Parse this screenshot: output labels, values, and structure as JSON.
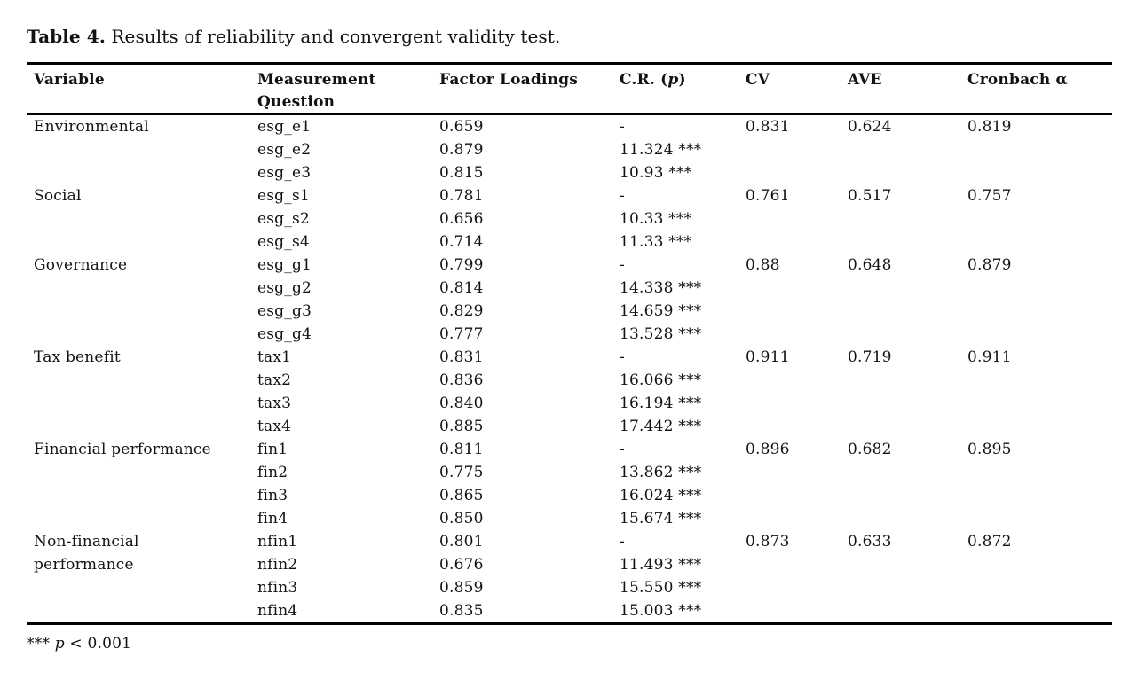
{
  "caption": {
    "label": "Table 4.",
    "text": " Results of reliability and convergent validity test."
  },
  "table": {
    "headers": {
      "variable": "Variable",
      "measurement_question": "Measurement Question",
      "factor_loadings": "Factor Loadings",
      "cr_prefix": "C.R. (",
      "cr_p": "p",
      "cr_suffix": ")",
      "cv": "CV",
      "ave": "AVE",
      "cronbach": "Cronbach α"
    },
    "groups": [
      {
        "variable": "Environmental",
        "cv": "0.831",
        "ave": "0.624",
        "cronbach": "0.819",
        "items": [
          {
            "question": "esg_e1",
            "loading": "0.659",
            "cr": "-"
          },
          {
            "question": "esg_e2",
            "loading": "0.879",
            "cr": "11.324 ***"
          },
          {
            "question": "esg_e3",
            "loading": "0.815",
            "cr": "10.93 ***"
          }
        ]
      },
      {
        "variable": "Social",
        "cv": "0.761",
        "ave": "0.517",
        "cronbach": "0.757",
        "items": [
          {
            "question": "esg_s1",
            "loading": "0.781",
            "cr": "-"
          },
          {
            "question": "esg_s2",
            "loading": "0.656",
            "cr": "10.33 ***"
          },
          {
            "question": "esg_s4",
            "loading": "0.714",
            "cr": "11.33 ***"
          }
        ]
      },
      {
        "variable": "Governance",
        "cv": "0.88",
        "ave": "0.648",
        "cronbach": "0.879",
        "items": [
          {
            "question": "esg_g1",
            "loading": "0.799",
            "cr": "-"
          },
          {
            "question": "esg_g2",
            "loading": "0.814",
            "cr": "14.338 ***"
          },
          {
            "question": "esg_g3",
            "loading": "0.829",
            "cr": "14.659 ***"
          },
          {
            "question": "esg_g4",
            "loading": "0.777",
            "cr": "13.528 ***"
          }
        ]
      },
      {
        "variable": "Tax benefit",
        "cv": "0.911",
        "ave": "0.719",
        "cronbach": "0.911",
        "items": [
          {
            "question": "tax1",
            "loading": "0.831",
            "cr": "-"
          },
          {
            "question": "tax2",
            "loading": "0.836",
            "cr": "16.066 ***"
          },
          {
            "question": "tax3",
            "loading": "0.840",
            "cr": "16.194 ***"
          },
          {
            "question": "tax4",
            "loading": "0.885",
            "cr": "17.442 ***"
          }
        ]
      },
      {
        "variable": "Financial performance",
        "cv": "0.896",
        "ave": "0.682",
        "cronbach": "0.895",
        "items": [
          {
            "question": "fin1",
            "loading": "0.811",
            "cr": "-"
          },
          {
            "question": "fin2",
            "loading": "0.775",
            "cr": "13.862 ***"
          },
          {
            "question": "fin3",
            "loading": "0.865",
            "cr": "16.024 ***"
          },
          {
            "question": "fin4",
            "loading": "0.850",
            "cr": "15.674 ***"
          }
        ]
      },
      {
        "variable": "Non-financial performance",
        "cv": "0.873",
        "ave": "0.633",
        "cronbach": "0.872",
        "items": [
          {
            "question": "nfin1",
            "loading": "0.801",
            "cr": "-"
          },
          {
            "question": "nfin2",
            "loading": "0.676",
            "cr": "11.493 ***"
          },
          {
            "question": "nfin3",
            "loading": "0.859",
            "cr": "15.550 ***"
          },
          {
            "question": "nfin4",
            "loading": "0.835",
            "cr": "15.003 ***"
          }
        ]
      }
    ]
  },
  "footnote": {
    "stars": "***",
    "p": "p",
    "rest": "< 0.001"
  }
}
